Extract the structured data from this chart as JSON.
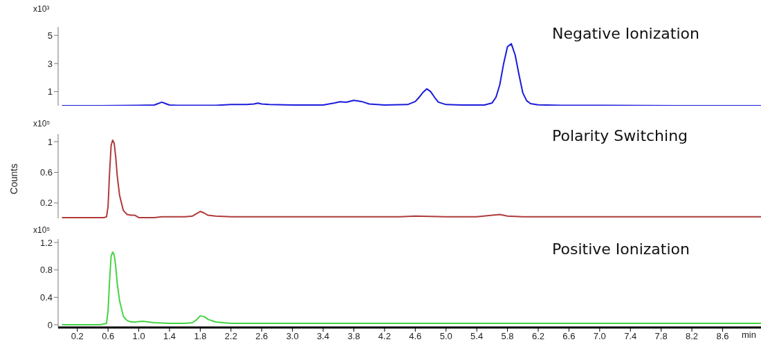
{
  "chart_data": [
    {
      "type": "line",
      "title": "Negative Ionization",
      "annotations": [
        "x10³"
      ],
      "xlim": [
        -0.05,
        9.1
      ],
      "ylim": [
        0,
        5.6
      ],
      "yticks": [
        1,
        3,
        5
      ],
      "tick_labels": "y",
      "x": [
        0,
        0.5,
        1.0,
        1.2,
        1.25,
        1.3,
        1.35,
        1.4,
        1.5,
        2.0,
        2.2,
        2.4,
        2.5,
        2.55,
        2.6,
        2.7,
        3.0,
        3.4,
        3.55,
        3.62,
        3.7,
        3.8,
        3.9,
        4.0,
        4.2,
        4.5,
        4.6,
        4.65,
        4.7,
        4.75,
        4.8,
        4.85,
        4.9,
        5.0,
        5.2,
        5.5,
        5.6,
        5.65,
        5.7,
        5.75,
        5.8,
        5.85,
        5.9,
        5.95,
        6.0,
        6.05,
        6.1,
        6.2,
        6.5,
        7.0,
        8.0,
        9.1
      ],
      "values": [
        0,
        0,
        0.02,
        0.05,
        0.15,
        0.25,
        0.15,
        0.05,
        0.03,
        0.03,
        0.08,
        0.08,
        0.12,
        0.18,
        0.12,
        0.08,
        0.05,
        0.05,
        0.2,
        0.28,
        0.25,
        0.38,
        0.3,
        0.12,
        0.05,
        0.08,
        0.3,
        0.6,
        0.95,
        1.2,
        1.0,
        0.6,
        0.25,
        0.08,
        0.05,
        0.05,
        0.2,
        0.6,
        1.5,
        3.0,
        4.2,
        4.4,
        3.6,
        2.2,
        0.9,
        0.35,
        0.15,
        0.06,
        0.03,
        0.02,
        0,
        0
      ],
      "color": "#1a1adb"
    },
    {
      "type": "line",
      "title": "Polarity Switching",
      "ylabel": "Counts",
      "annotations": [
        "x10⁵"
      ],
      "xlim": [
        -0.05,
        9.1
      ],
      "ylim": [
        0,
        1.1
      ],
      "yticks": [
        0.2,
        0.6,
        1
      ],
      "tick_labels": "y",
      "x": [
        0,
        0.3,
        0.55,
        0.58,
        0.6,
        0.62,
        0.64,
        0.66,
        0.68,
        0.7,
        0.72,
        0.75,
        0.8,
        0.85,
        0.9,
        0.95,
        1.0,
        1.2,
        1.3,
        1.6,
        1.7,
        1.75,
        1.8,
        1.85,
        1.9,
        2.0,
        2.2,
        3.0,
        4.0,
        4.4,
        4.6,
        5.0,
        5.4,
        5.6,
        5.7,
        5.8,
        6.0,
        7.0,
        8.0,
        9.1
      ],
      "values": [
        0.01,
        0.01,
        0.01,
        0.02,
        0.15,
        0.6,
        0.95,
        1.02,
        0.98,
        0.8,
        0.55,
        0.3,
        0.1,
        0.05,
        0.04,
        0.04,
        0.01,
        0.01,
        0.02,
        0.02,
        0.03,
        0.06,
        0.09,
        0.07,
        0.04,
        0.03,
        0.02,
        0.02,
        0.02,
        0.02,
        0.03,
        0.02,
        0.02,
        0.04,
        0.05,
        0.03,
        0.02,
        0.02,
        0.02,
        0.02
      ],
      "color": "#b03a3a"
    },
    {
      "type": "line",
      "title": "Positive Ionization",
      "xlabel": "min",
      "annotations": [
        "x10⁵"
      ],
      "xlim": [
        -0.05,
        9.1
      ],
      "ylim": [
        -0.04,
        1.25
      ],
      "yticks": [
        0,
        0.4,
        0.8,
        1.2
      ],
      "xticks": [
        0.2,
        0.6,
        {
          "value": 1.0,
          "label": "1.0"
        },
        1.4,
        1.8,
        2.2,
        2.6,
        {
          "value": 3.0,
          "label": "3.0"
        },
        3.4,
        3.8,
        4.2,
        4.6,
        {
          "value": 5.0,
          "label": "5.0"
        },
        5.4,
        5.8,
        6.2,
        6.6,
        {
          "value": 7.0,
          "label": "7.0"
        },
        7.4,
        7.8,
        8.2,
        8.6
      ],
      "x": [
        0,
        0.5,
        0.58,
        0.6,
        0.62,
        0.64,
        0.66,
        0.68,
        0.7,
        0.72,
        0.75,
        0.8,
        0.85,
        0.9,
        0.95,
        1.05,
        1.2,
        1.4,
        1.6,
        1.7,
        1.75,
        1.8,
        1.85,
        1.9,
        2.0,
        2.2,
        3.0,
        4.0,
        5.0,
        6.0,
        7.0,
        8.0,
        9.1
      ],
      "values": [
        0,
        0,
        0.02,
        0.2,
        0.65,
        1.0,
        1.06,
        1.02,
        0.85,
        0.6,
        0.35,
        0.12,
        0.06,
        0.04,
        0.04,
        0.05,
        0.03,
        0.02,
        0.02,
        0.03,
        0.07,
        0.13,
        0.12,
        0.08,
        0.04,
        0.02,
        0.02,
        0.02,
        0.02,
        0.02,
        0.02,
        0.02,
        0.02
      ],
      "color": "#44d444"
    }
  ]
}
